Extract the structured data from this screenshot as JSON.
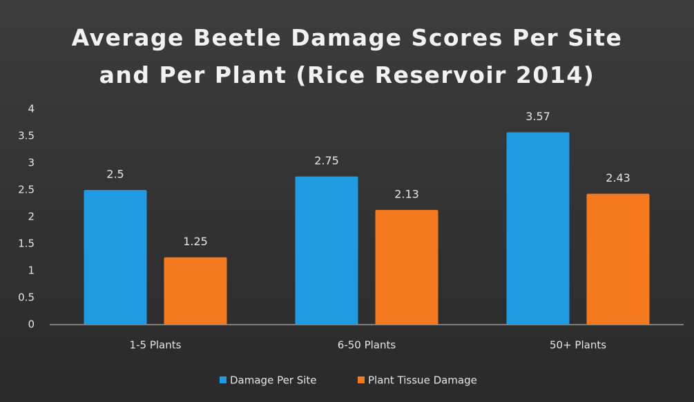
{
  "chart_data": {
    "type": "bar",
    "title": "Average Beetle Damage Scores Per Site and Per Plant (Rice Reservoir 2014)",
    "categories": [
      "1-5 Plants",
      "6-50 Plants",
      "50+ Plants"
    ],
    "series": [
      {
        "name": "Damage Per Site",
        "color": "#1e9be3",
        "values": [
          2.5,
          2.75,
          3.57
        ]
      },
      {
        "name": "Plant Tissue Damage",
        "color": "#f57a1f",
        "values": [
          1.25,
          2.13,
          2.43
        ]
      }
    ],
    "ylim": [
      0,
      4
    ],
    "yticks": [
      0,
      0.5,
      1,
      1.5,
      2,
      2.5,
      3,
      3.5,
      4
    ],
    "grid": false,
    "legend": "bottom"
  }
}
